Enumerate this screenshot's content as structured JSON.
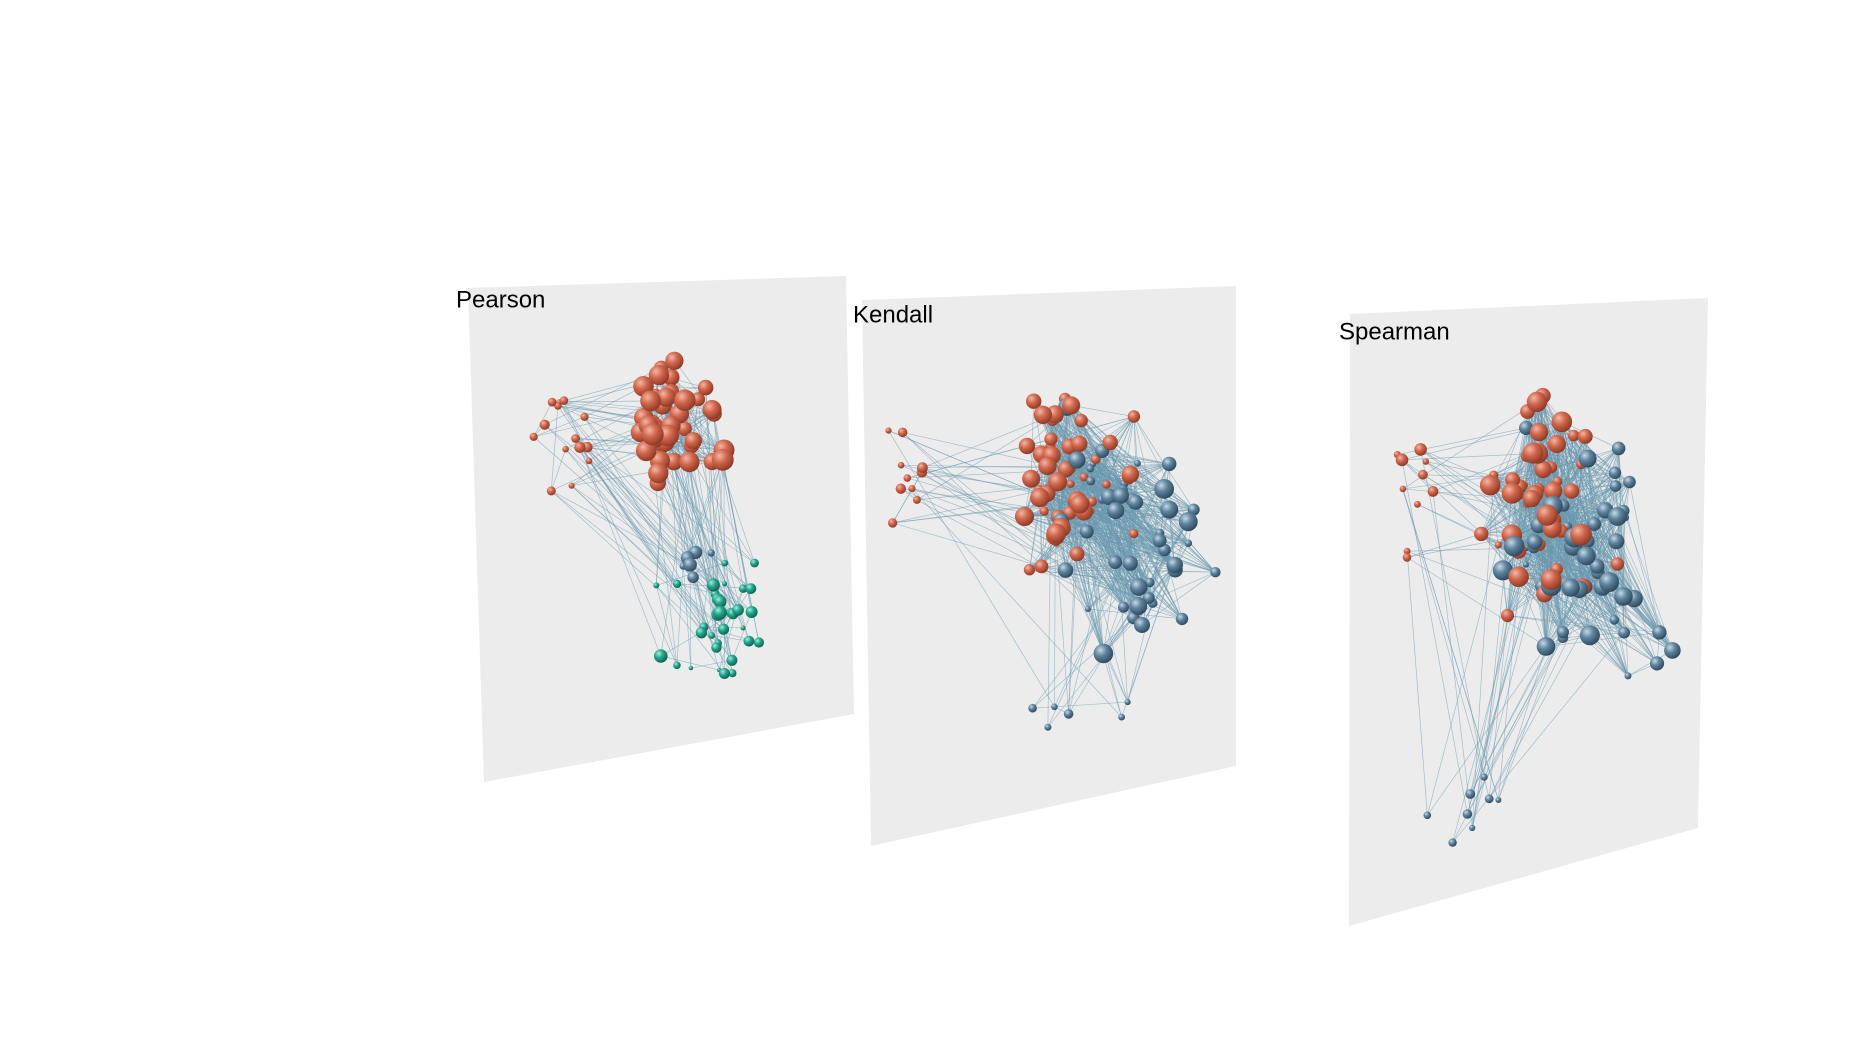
{
  "panels": [
    {
      "label": "Pearson"
    },
    {
      "label": "Kendall"
    },
    {
      "label": "Spearman"
    }
  ]
}
